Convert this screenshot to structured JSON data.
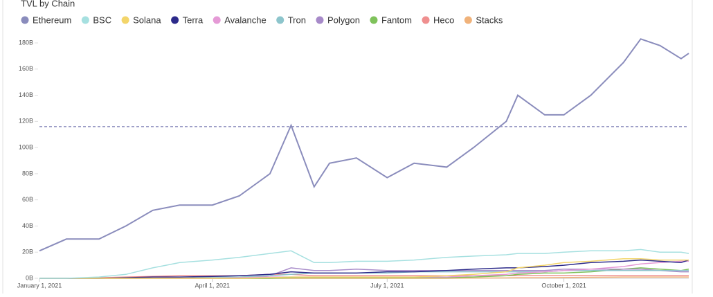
{
  "chart_data": {
    "type": "line",
    "title": "TVL by Chain",
    "x": [
      "2021-01-01",
      "2021-01-15",
      "2021-02-01",
      "2021-02-15",
      "2021-03-01",
      "2021-03-15",
      "2021-04-01",
      "2021-04-15",
      "2021-05-01",
      "2021-05-12",
      "2021-05-24",
      "2021-06-01",
      "2021-06-15",
      "2021-07-01",
      "2021-07-15",
      "2021-08-01",
      "2021-08-15",
      "2021-09-01",
      "2021-09-07",
      "2021-09-21",
      "2021-10-01",
      "2021-10-15",
      "2021-11-01",
      "2021-11-10",
      "2021-11-20",
      "2021-12-01",
      "2021-12-05"
    ],
    "xlim": [
      "2021-01-01",
      "2021-12-05"
    ],
    "xticks": [
      {
        "value": "2021-01-01",
        "label": "January 1, 2021"
      },
      {
        "value": "2021-04-01",
        "label": "April 1, 2021"
      },
      {
        "value": "2021-07-01",
        "label": "July 1, 2021"
      },
      {
        "value": "2021-10-01",
        "label": "October 1, 2021"
      }
    ],
    "ylim": [
      0,
      180
    ],
    "yticks": [
      {
        "value": 0,
        "label": "0B"
      },
      {
        "value": 20,
        "label": "20B"
      },
      {
        "value": 40,
        "label": "40B"
      },
      {
        "value": 60,
        "label": "60B"
      },
      {
        "value": 80,
        "label": "80B"
      },
      {
        "value": 100,
        "label": "100B"
      },
      {
        "value": 120,
        "label": "120B"
      },
      {
        "value": 140,
        "label": "140B"
      },
      {
        "value": 160,
        "label": "160B"
      },
      {
        "value": 180,
        "label": "180B"
      }
    ],
    "reference_line": 116,
    "series": [
      {
        "name": "Ethereum",
        "color": "#8a8cbc",
        "values": [
          21,
          30,
          30,
          40,
          52,
          56,
          56,
          63,
          80,
          117,
          70,
          88,
          92,
          77,
          88,
          85,
          100,
          120,
          140,
          125,
          125,
          140,
          165,
          183,
          178,
          168,
          172
        ]
      },
      {
        "name": "BSC",
        "color": "#a6e0e0",
        "values": [
          0,
          0,
          1,
          3,
          8,
          12,
          14,
          16,
          19,
          21,
          12,
          12,
          13,
          13,
          14,
          16,
          17,
          18,
          19,
          19,
          20,
          21,
          21,
          22,
          20,
          20,
          19
        ]
      },
      {
        "name": "Solana",
        "color": "#f3d56a",
        "values": [
          0,
          0,
          0,
          0,
          0,
          0,
          0,
          0,
          0.5,
          1,
          1,
          1,
          1,
          1,
          1,
          2,
          3,
          5,
          8,
          10,
          12,
          13,
          15,
          15,
          14,
          14,
          14
        ]
      },
      {
        "name": "Terra",
        "color": "#2c2a8a",
        "values": [
          0,
          0,
          0,
          0.5,
          1,
          1,
          1.5,
          2,
          3,
          5,
          4,
          4,
          4,
          5,
          5,
          6,
          7,
          8,
          8,
          9,
          10,
          12,
          13,
          14,
          13,
          12,
          14
        ]
      },
      {
        "name": "Avalanche",
        "color": "#e59ad6",
        "values": [
          0,
          0,
          0,
          0,
          0,
          0,
          0,
          0.5,
          1,
          1,
          1,
          1,
          1,
          1,
          1,
          1,
          2,
          3,
          4,
          5,
          6,
          7,
          9,
          11,
          12,
          13,
          13
        ]
      },
      {
        "name": "Tron",
        "color": "#8dc5cc",
        "values": [
          0,
          0,
          0,
          0,
          0,
          0,
          1,
          1,
          2,
          3,
          4,
          4,
          4,
          4,
          5,
          5,
          5,
          5,
          5,
          5,
          6,
          6,
          6,
          6,
          6,
          6,
          6
        ]
      },
      {
        "name": "Polygon",
        "color": "#a78ac9",
        "values": [
          0,
          0,
          0,
          0,
          0,
          0,
          0,
          0,
          2,
          8,
          6,
          6,
          7,
          6,
          6,
          6,
          6,
          6,
          6,
          6,
          7,
          7,
          7,
          7,
          6,
          5,
          5
        ]
      },
      {
        "name": "Fantom",
        "color": "#7fc25b",
        "values": [
          0,
          0,
          0,
          0,
          0,
          0,
          0,
          0,
          0,
          0.5,
          0.5,
          0.5,
          0.5,
          0.5,
          0.5,
          0.5,
          1,
          2,
          3,
          4,
          4,
          5,
          7,
          8,
          7,
          6,
          7
        ]
      },
      {
        "name": "Heco",
        "color": "#ef8f8f",
        "values": [
          0,
          0,
          0.5,
          1,
          1.5,
          2,
          2,
          2,
          3,
          3,
          2,
          2,
          2,
          2,
          2,
          2,
          2,
          2,
          2,
          2,
          2,
          2,
          2,
          2,
          2,
          2,
          2
        ]
      },
      {
        "name": "Stacks",
        "color": "#f0b27a",
        "values": [
          0,
          0,
          0,
          0,
          0,
          0,
          0,
          0,
          0,
          0,
          0,
          0,
          0,
          0,
          0,
          0,
          0.2,
          0.3,
          0.5,
          0.5,
          0.6,
          0.8,
          1,
          1,
          1,
          1,
          1
        ]
      }
    ]
  }
}
